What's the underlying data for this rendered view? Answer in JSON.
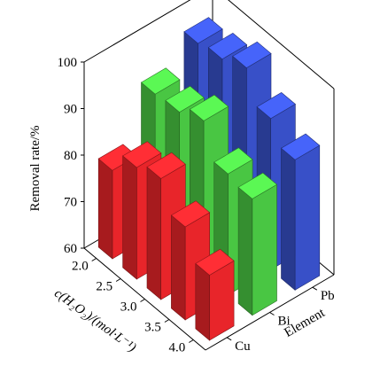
{
  "chart_data": {
    "type": "bar3d",
    "xlabel": "c(H₂O₂)/(mol·L⁻¹)",
    "ylabel": "Element",
    "zlabel": "Removal rate/%",
    "x_categories": [
      "2.0",
      "2.5",
      "3.0",
      "3.5",
      "4.0"
    ],
    "y_categories": [
      "Cu",
      "Bi",
      "Pb"
    ],
    "zlim": [
      60,
      100
    ],
    "z_ticks": [
      "60",
      "70",
      "80",
      "90",
      "100"
    ],
    "series": [
      {
        "name": "Cu",
        "color": "#e8252a",
        "values": [
          79,
          84,
          86,
          80,
          74
        ]
      },
      {
        "name": "Bi",
        "color": "#49c643",
        "values": [
          90,
          90.5,
          93,
          86,
          85
        ]
      },
      {
        "name": "Pb",
        "color": "#3850c8",
        "values": [
          95.5,
          96.5,
          99,
          92.5,
          88
        ]
      }
    ]
  }
}
